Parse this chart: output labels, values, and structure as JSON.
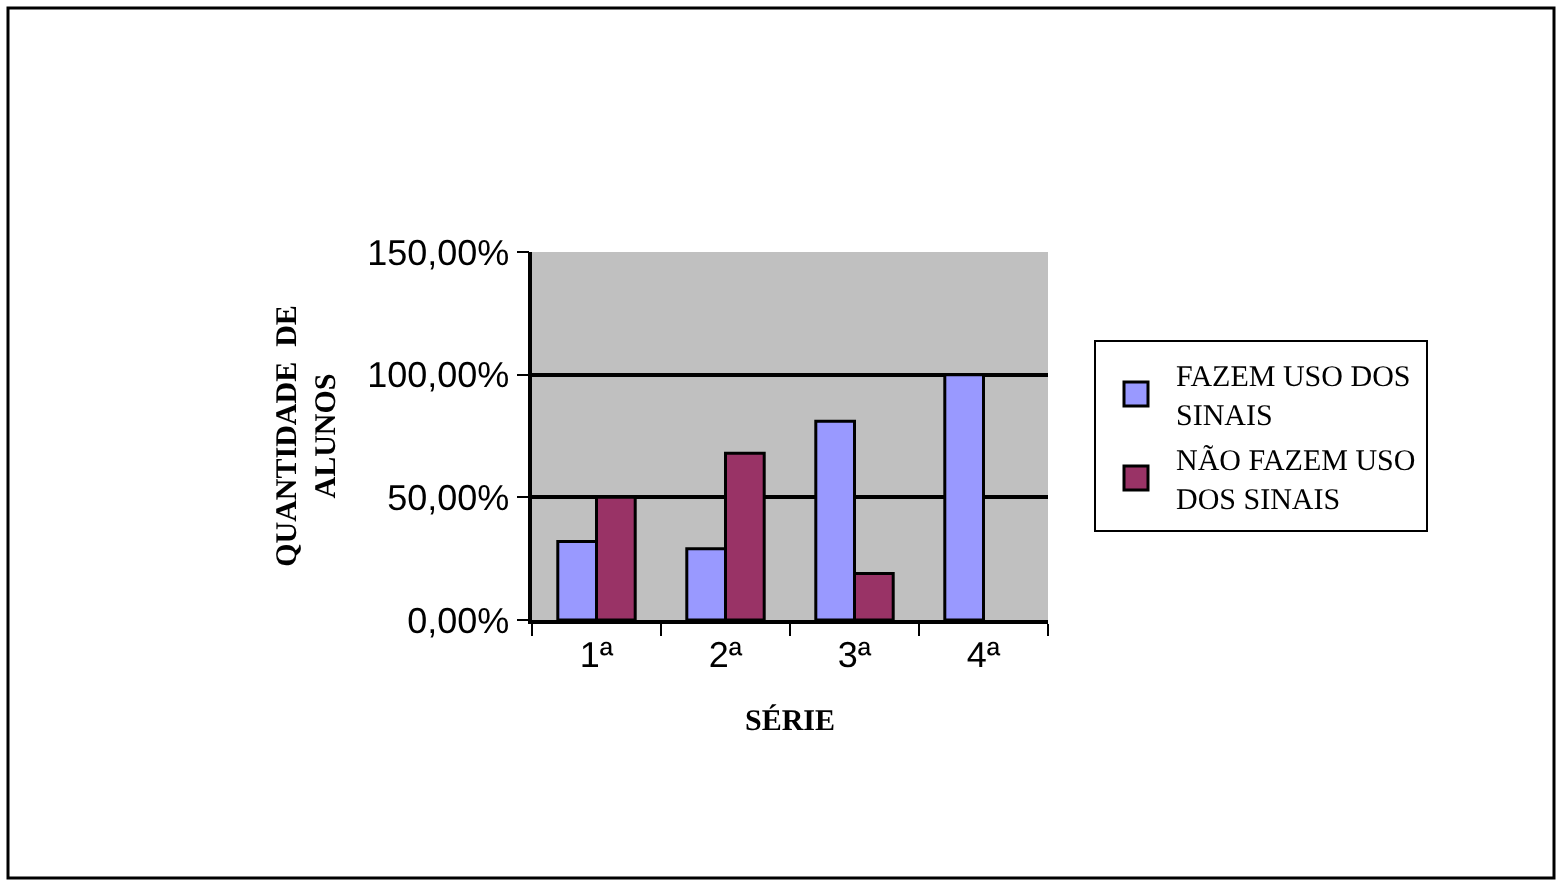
{
  "chart_data": {
    "type": "bar",
    "xlabel": "SÉRIE",
    "ylabel": "QUANTIDADE  DE\nALUNOS",
    "categories": [
      "1ª",
      "2ª",
      "3ª",
      "4ª"
    ],
    "series": [
      {
        "name": "FAZEM USO DOS SINAIS",
        "color": "#9999ff",
        "values": [
          32,
          29,
          81,
          100
        ]
      },
      {
        "name": "NÃO FAZEM USO DOS SINAIS",
        "color": "#993366",
        "values": [
          50,
          68,
          19,
          null
        ]
      }
    ],
    "ylim": [
      0,
      150
    ],
    "yticks": [
      {
        "value": 0,
        "label": "0,00%"
      },
      {
        "value": 50,
        "label": "50,00%"
      },
      {
        "value": 100,
        "label": "100,00%"
      },
      {
        "value": 150,
        "label": "150,00%"
      }
    ],
    "grid": "y",
    "legend": "right"
  }
}
